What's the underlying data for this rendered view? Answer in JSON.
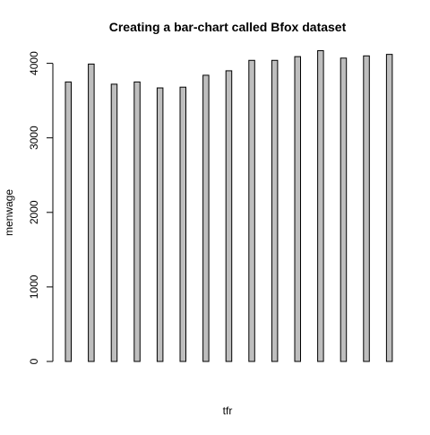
{
  "chart_data": {
    "type": "bar",
    "title": "Creating a bar-chart called Bfox dataset",
    "xlabel": "tfr",
    "ylabel": "menwage",
    "values": [
      3750,
      3990,
      3720,
      3750,
      3670,
      3680,
      3840,
      3900,
      4040,
      4040,
      4090,
      4170,
      4070,
      4100,
      4120
    ],
    "ylim": [
      0,
      4200
    ],
    "yticks": [
      0,
      1000,
      2000,
      3000,
      4000
    ],
    "grid": false,
    "legend": "none",
    "colors": {
      "bar_fill": "#bebebe",
      "bar_stroke": "#000000"
    }
  }
}
